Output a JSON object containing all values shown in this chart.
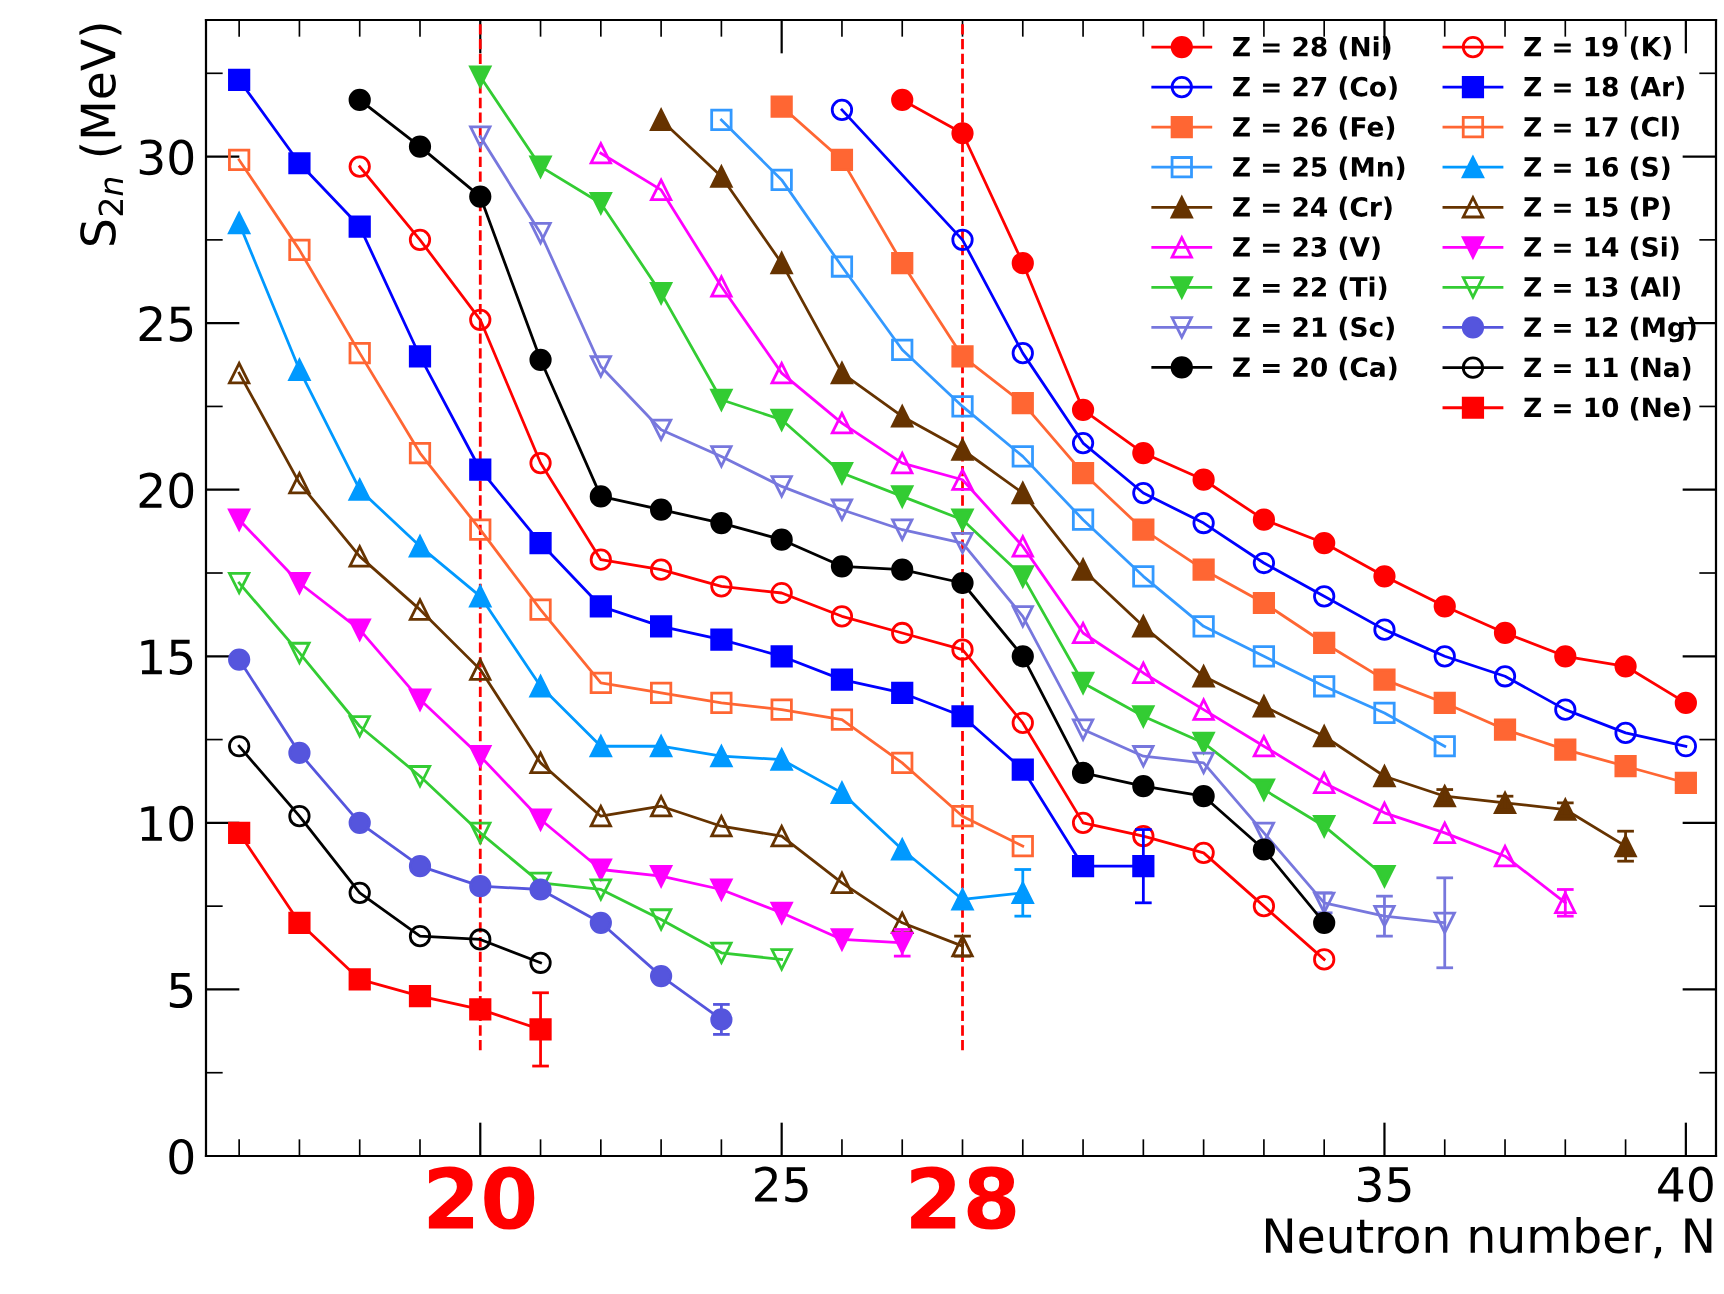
{
  "chart_data": {
    "type": "line",
    "xlabel": "Neutron number, N",
    "ylabel": "S$_{2n}$ (MeV)",
    "xlim": [
      15.45,
      40.5
    ],
    "xticks": [
      {
        "value": 20,
        "label": null
      },
      25,
      35,
      40
    ],
    "ylim": [
      0,
      34.1
    ],
    "yticks": [
      0,
      5,
      10,
      15,
      20,
      25,
      30
    ],
    "grid": false,
    "legend": "top right",
    "line_style": "solid",
    "ref_lines": [
      {
        "axis": "x",
        "value": 20,
        "label": "20",
        "color": "#ff0000",
        "line_style": "dashed"
      },
      {
        "axis": "x",
        "value": 28,
        "label": "28",
        "color": "#ff0000",
        "line_style": "dashed"
      }
    ],
    "series": [
      {
        "name": "Z = 28 (Ni)",
        "color": "#ff0000",
        "marker": "circle",
        "x": [
          27,
          28,
          29,
          30,
          31,
          32,
          33,
          34,
          35,
          36,
          37,
          38,
          39,
          40
        ],
        "values": [
          31.7,
          30.7,
          26.8,
          22.4,
          21.1,
          20.3,
          19.1,
          18.4,
          17.4,
          16.5,
          15.7,
          15.0,
          14.7,
          13.6
        ]
      },
      {
        "name": "Z = 27 (Co)",
        "color": "#0000ff",
        "marker": "circle_open",
        "x": [
          26,
          28,
          29,
          30,
          31,
          32,
          33,
          34,
          35,
          36,
          37,
          38,
          39,
          40
        ],
        "values": [
          31.4,
          27.5,
          24.1,
          21.4,
          19.9,
          19.0,
          17.8,
          16.8,
          15.8,
          15.0,
          14.4,
          13.4,
          12.7,
          12.3
        ]
      },
      {
        "name": "Z = 26 (Fe)",
        "color": "#ff6633",
        "marker": "square",
        "x": [
          25,
          26,
          27,
          28,
          29,
          30,
          31,
          32,
          33,
          34,
          35,
          36,
          37,
          38,
          39,
          40
        ],
        "values": [
          31.5,
          29.9,
          26.8,
          24.0,
          22.6,
          20.5,
          18.8,
          17.6,
          16.6,
          15.4,
          14.3,
          13.6,
          12.8,
          12.2,
          11.7,
          11.2
        ]
      },
      {
        "name": "Z = 25 (Mn)",
        "color": "#3399ff",
        "marker": "square_open",
        "x": [
          24,
          25,
          26,
          27,
          28,
          29,
          30,
          31,
          32,
          33,
          34,
          35,
          36
        ],
        "values": [
          31.1,
          29.3,
          26.7,
          24.2,
          22.5,
          21.0,
          19.1,
          17.4,
          15.9,
          15.0,
          14.1,
          13.3,
          12.3
        ]
      },
      {
        "name": "Z = 24 (Cr)",
        "color": "#663300",
        "marker": "triangle",
        "x": [
          23,
          24,
          25,
          26,
          27,
          28,
          29,
          30,
          31,
          32,
          33,
          34,
          35,
          36,
          37,
          38,
          39
        ],
        "values": [
          31.1,
          29.4,
          26.8,
          23.5,
          22.2,
          21.2,
          19.9,
          17.6,
          15.9,
          14.4,
          13.5,
          12.6,
          11.4,
          10.8,
          10.6,
          10.4,
          9.3
        ],
        "errors": [
          null,
          null,
          null,
          null,
          null,
          null,
          null,
          null,
          null,
          null,
          null,
          null,
          null,
          0.2,
          0.2,
          0.2,
          0.45
        ]
      },
      {
        "name": "Z = 23 (V)",
        "color": "#ff00ff",
        "marker": "triangle_open",
        "x": [
          22,
          23,
          24,
          25,
          26,
          27,
          28,
          29,
          30,
          31,
          32,
          33,
          34,
          35,
          36,
          37,
          38
        ],
        "values": [
          30.1,
          29.0,
          26.1,
          23.5,
          22.0,
          20.8,
          20.3,
          18.3,
          15.7,
          14.5,
          13.4,
          12.3,
          11.2,
          10.3,
          9.7,
          9.0,
          7.6
        ],
        "errors": [
          null,
          null,
          null,
          null,
          null,
          null,
          null,
          null,
          null,
          null,
          null,
          null,
          null,
          null,
          null,
          null,
          0.4
        ]
      },
      {
        "name": "Z = 22 (Ti)",
        "color": "#33cc33",
        "marker": "triangle_down",
        "x": [
          20,
          21,
          22,
          23,
          24,
          25,
          26,
          27,
          28,
          29,
          30,
          31,
          32,
          33,
          34,
          35
        ],
        "values": [
          32.4,
          29.7,
          28.6,
          25.9,
          22.7,
          22.1,
          20.5,
          19.8,
          19.1,
          17.4,
          14.2,
          13.2,
          12.4,
          11.0,
          9.9,
          8.4
        ]
      },
      {
        "name": "Z = 21 (Sc)",
        "color": "#7777dd",
        "marker": "triangle_down_open",
        "x": [
          20,
          21,
          22,
          23,
          24,
          25,
          26,
          27,
          28,
          29,
          30,
          31,
          32,
          33,
          34,
          35,
          36
        ],
        "values": [
          30.6,
          27.7,
          23.7,
          21.8,
          21.0,
          20.1,
          19.4,
          18.8,
          18.4,
          16.2,
          12.8,
          12.0,
          11.8,
          9.7,
          7.6,
          7.2,
          7.0
        ],
        "errors": [
          null,
          null,
          null,
          null,
          null,
          null,
          null,
          null,
          null,
          null,
          null,
          null,
          null,
          null,
          0.3,
          0.6,
          1.35
        ]
      },
      {
        "name": "Z = 20 (Ca)",
        "color": "#000000",
        "marker": "circle",
        "x": [
          18,
          19,
          20,
          21,
          22,
          23,
          24,
          25,
          26,
          27,
          28,
          29,
          30,
          31,
          32,
          33,
          34
        ],
        "values": [
          31.7,
          30.3,
          28.8,
          23.9,
          19.8,
          19.4,
          19.0,
          18.5,
          17.7,
          17.6,
          17.2,
          15.0,
          11.5,
          11.1,
          10.8,
          9.2,
          7.0
        ]
      },
      {
        "name": "Z = 19 (K)",
        "color": "#ff0000",
        "marker": "circle_open",
        "x": [
          18,
          19,
          20,
          21,
          22,
          23,
          24,
          25,
          26,
          27,
          28,
          29,
          30,
          31,
          32,
          33,
          34
        ],
        "values": [
          29.7,
          27.5,
          25.1,
          20.8,
          17.9,
          17.6,
          17.1,
          16.9,
          16.2,
          15.7,
          15.2,
          13.0,
          10.0,
          9.6,
          9.1,
          7.5,
          5.9
        ]
      },
      {
        "name": "Z = 18 (Ar)",
        "color": "#0000ff",
        "marker": "square",
        "x": [
          16,
          17,
          18,
          19,
          20,
          21,
          22,
          23,
          24,
          25,
          26,
          27,
          28,
          29,
          30,
          31
        ],
        "values": [
          32.3,
          29.8,
          27.9,
          24.0,
          20.6,
          18.4,
          16.5,
          15.9,
          15.5,
          15.0,
          14.3,
          13.9,
          13.2,
          11.6,
          8.7,
          8.7
        ],
        "errors": [
          null,
          null,
          null,
          null,
          null,
          null,
          null,
          null,
          null,
          null,
          null,
          null,
          null,
          null,
          0.25,
          1.1
        ]
      },
      {
        "name": "Z = 17 (Cl)",
        "color": "#ff6633",
        "marker": "square_open",
        "x": [
          16,
          17,
          18,
          19,
          20,
          21,
          22,
          23,
          24,
          25,
          26,
          27,
          28,
          29
        ],
        "values": [
          29.9,
          27.2,
          24.1,
          21.1,
          18.8,
          16.4,
          14.2,
          13.9,
          13.6,
          13.4,
          13.1,
          11.8,
          10.2,
          9.3
        ]
      },
      {
        "name": "Z = 16 (S)",
        "color": "#0099ff",
        "marker": "triangle",
        "x": [
          16,
          17,
          18,
          19,
          20,
          21,
          22,
          23,
          24,
          25,
          26,
          27,
          28,
          29
        ],
        "values": [
          28.0,
          23.6,
          20.0,
          18.3,
          16.8,
          14.1,
          12.3,
          12.3,
          12.0,
          11.9,
          10.9,
          9.2,
          7.7,
          7.9
        ],
        "errors": [
          null,
          null,
          null,
          null,
          null,
          null,
          null,
          null,
          null,
          null,
          null,
          null,
          null,
          0.7
        ]
      },
      {
        "name": "Z = 15 (P)",
        "color": "#663300",
        "marker": "triangle_open",
        "x": [
          16,
          17,
          18,
          19,
          20,
          21,
          22,
          23,
          24,
          25,
          26,
          27,
          28
        ],
        "values": [
          23.5,
          20.2,
          18.0,
          16.4,
          14.6,
          11.8,
          10.2,
          10.5,
          9.9,
          9.6,
          8.2,
          7.0,
          6.3
        ],
        "errors": [
          null,
          null,
          null,
          null,
          null,
          null,
          null,
          null,
          null,
          null,
          null,
          null,
          0.3
        ]
      },
      {
        "name": "Z = 14 (Si)",
        "color": "#ff00ff",
        "marker": "triangle_down",
        "x": [
          16,
          17,
          18,
          19,
          20,
          21,
          22,
          23,
          24,
          25,
          26,
          27
        ],
        "values": [
          19.1,
          17.2,
          15.8,
          13.7,
          12.0,
          10.1,
          8.6,
          8.4,
          8.0,
          7.3,
          6.5,
          6.4
        ],
        "errors": [
          null,
          null,
          null,
          null,
          null,
          null,
          null,
          null,
          null,
          null,
          null,
          0.4
        ]
      },
      {
        "name": "Z = 13 (Al)",
        "color": "#33cc33",
        "marker": "triangle_down_open",
        "x": [
          16,
          17,
          18,
          19,
          20,
          21,
          22,
          23,
          24,
          25
        ],
        "values": [
          17.2,
          15.1,
          12.9,
          11.4,
          9.7,
          8.2,
          8.0,
          7.1,
          6.1,
          5.9
        ]
      },
      {
        "name": "Z = 12 (Mg)",
        "color": "#5555dd",
        "marker": "circle",
        "x": [
          16,
          17,
          18,
          19,
          20,
          21,
          22,
          23,
          24
        ],
        "values": [
          14.9,
          12.1,
          10.0,
          8.7,
          8.1,
          8.0,
          7.0,
          5.4,
          4.1
        ],
        "errors": [
          null,
          null,
          null,
          null,
          null,
          null,
          null,
          null,
          0.45
        ]
      },
      {
        "name": "Z = 11 (Na)",
        "color": "#000000",
        "marker": "circle_open",
        "x": [
          16,
          17,
          18,
          19,
          20,
          21
        ],
        "values": [
          12.3,
          10.2,
          7.9,
          6.6,
          6.5,
          5.8
        ]
      },
      {
        "name": "Z = 10 (Ne)",
        "color": "#ff0000",
        "marker": "square",
        "x": [
          16,
          17,
          18,
          19,
          20,
          21
        ],
        "values": [
          9.7,
          7.0,
          5.3,
          4.8,
          4.4,
          3.8
        ],
        "errors": [
          null,
          null,
          null,
          null,
          null,
          1.1
        ]
      }
    ]
  }
}
